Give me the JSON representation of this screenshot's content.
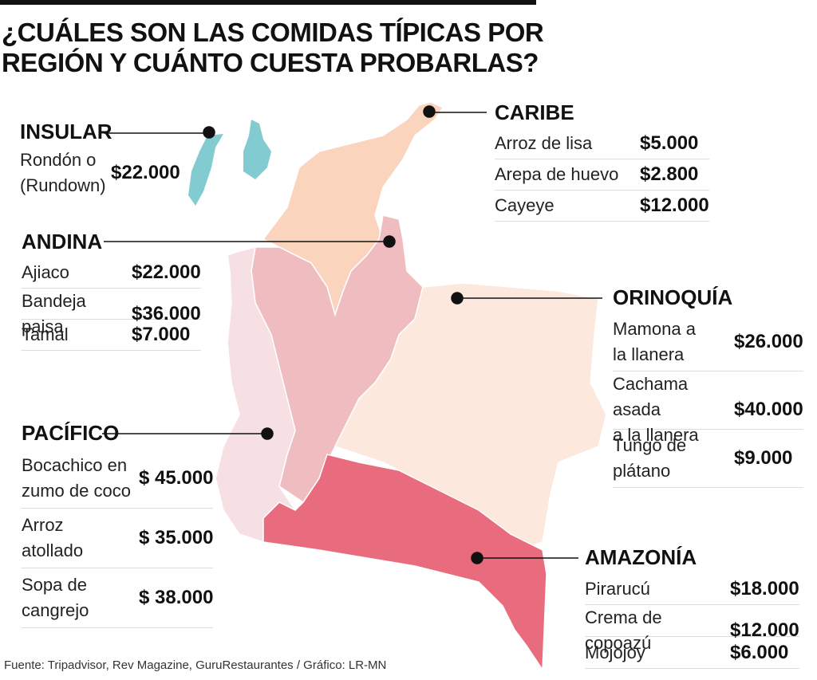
{
  "title": "¿CUÁLES SON LAS COMIDAS TÍPICAS POR\nREGIÓN Y CUÁNTO CUESTA PROBARLAS?",
  "regions": [
    {
      "name": "INSULAR",
      "items": [
        {
          "dish": "Rondón o\n(Rundown)",
          "price": "$22.000"
        }
      ]
    },
    {
      "name": "CARIBE",
      "items": [
        {
          "dish": "Arroz de lisa",
          "price": "$5.000"
        },
        {
          "dish": "Arepa de huevo",
          "price": "$2.800"
        },
        {
          "dish": "Cayeye",
          "price": "$12.000"
        }
      ]
    },
    {
      "name": "ANDINA",
      "items": [
        {
          "dish": "Ajiaco",
          "price": "$22.000"
        },
        {
          "dish": "Bandeja paisa",
          "price": "$36.000"
        },
        {
          "dish": "Tamal",
          "price": "$7.000"
        }
      ]
    },
    {
      "name": "ORINOQUÍA",
      "items": [
        {
          "dish": "Mamona a\nla llanera",
          "price": "$26.000"
        },
        {
          "dish": "Cachama asada\na la llanera",
          "price": "$40.000"
        },
        {
          "dish": "Tungo de\nplátano",
          "price": "$9.000"
        }
      ]
    },
    {
      "name": "PACÍFICO",
      "items": [
        {
          "dish": "Bocachico en\nzumo de coco",
          "price": "$ 45.000"
        },
        {
          "dish": "Arroz\natollado",
          "price": "$ 35.000"
        },
        {
          "dish": "Sopa de\ncangrejo",
          "price": "$ 38.000"
        }
      ]
    },
    {
      "name": "AMAZONÍA",
      "items": [
        {
          "dish": "Pirarucú",
          "price": "$18.000"
        },
        {
          "dish": "Crema de copoazú",
          "price": "$12.000"
        },
        {
          "dish": "Mojojoy",
          "price": "$6.000"
        }
      ]
    }
  ],
  "source": "Fuente: Tripadvisor, Rev Magazine, GuruRestaurantes / Gráfico: LR-MN"
}
